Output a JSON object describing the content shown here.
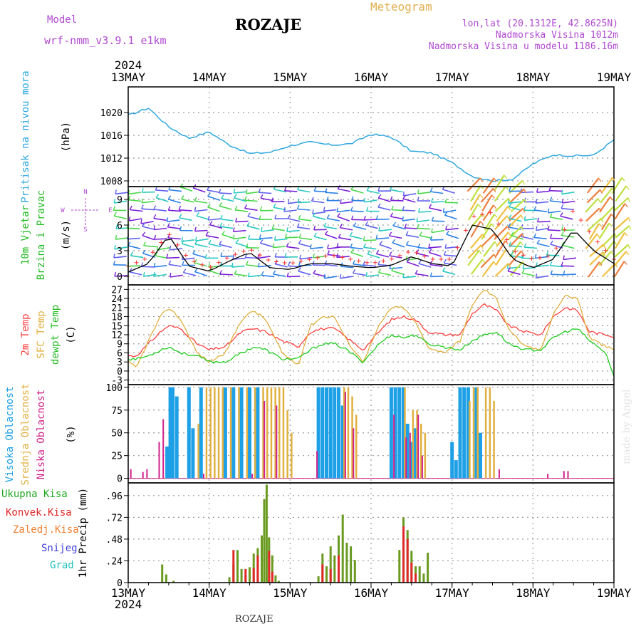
{
  "header": {
    "title": "ROZAJE",
    "meteogram_label": "Meteogram",
    "model_label": "Model",
    "model_name": "wrf-nmm_v3.9.1 e1km",
    "lonlat": "lon,lat (20.1312E, 42.8625N)",
    "elevation": "Nadmorska Visina 1012m",
    "model_elevation": "Nadmorska Visina u modelu 1186.16m"
  },
  "footer": {
    "station": "ROZAJE",
    "signature": "made by Angel"
  },
  "chart_data": [
    {
      "type": "line",
      "name": "pressure",
      "ylabel": "(hPa)",
      "side_label": "Pritisak na nivou mora",
      "ylim": [
        1007,
        1024.5
      ],
      "yticks": [
        1008,
        1012,
        1016,
        1020
      ],
      "x": [
        "2024-05-13 00",
        "2024-05-13 06",
        "2024-05-13 12",
        "2024-05-13 18",
        "2024-05-14 00",
        "2024-05-14 06",
        "2024-05-14 12",
        "2024-05-14 18",
        "2024-05-15 00",
        "2024-05-15 06",
        "2024-05-15 12",
        "2024-05-15 18",
        "2024-05-16 00",
        "2024-05-16 06",
        "2024-05-16 12",
        "2024-05-16 18",
        "2024-05-17 00",
        "2024-05-17 06",
        "2024-05-17 12",
        "2024-05-17 18",
        "2024-05-18 00",
        "2024-05-18 06",
        "2024-05-18 12",
        "2024-05-18 18",
        "2024-05-19 00"
      ],
      "values": [
        1019.5,
        1020.8,
        1017.5,
        1015.5,
        1016.6,
        1014.3,
        1012.8,
        1013.0,
        1014.2,
        1014.8,
        1014.3,
        1014.5,
        1016.2,
        1015.7,
        1013.2,
        1012.9,
        1011.2,
        1008.8,
        1008.0,
        1008.3,
        1011.0,
        1012.6,
        1012.4,
        1012.5,
        1015.2
      ],
      "color": "#30a8e0",
      "grid": true
    },
    {
      "type": "line",
      "name": "wind",
      "ylabel": "(m/s)",
      "side_labels": [
        "10m Vjetar",
        "Brzina i Pravac"
      ],
      "compass": [
        "N",
        "E",
        "S",
        "W"
      ],
      "ylim": [
        -1,
        10.5
      ],
      "yticks": [
        0,
        3,
        6,
        9
      ],
      "x_days": [
        0,
        0.25,
        0.5,
        0.75,
        1,
        1.25,
        1.5,
        1.75,
        2,
        2.25,
        2.5,
        2.75,
        3,
        3.25,
        3.5,
        3.75,
        4,
        4.25,
        4.5,
        4.75,
        5,
        5.25,
        5.5,
        5.75,
        6
      ],
      "series": [
        {
          "values": [
            0.5,
            1.5,
            4.8,
            1.2,
            0.6,
            1.8,
            2.8,
            1.0,
            0.8,
            1.5,
            1.5,
            1.2,
            1.0,
            1.3,
            2.3,
            1.5,
            1.2,
            6.0,
            5.5,
            2.0,
            1.0,
            2.0,
            5.5,
            3.0,
            1.5
          ],
          "color": "#000000"
        },
        {
          "values": [
            1.2,
            2.2,
            5.0,
            2.0,
            1.0,
            2.3,
            3.2,
            1.8,
            1.5,
            2.0,
            2.5,
            2.0,
            1.5,
            2.0,
            3.0,
            2.0,
            2.0,
            7.0,
            7.5,
            3.0,
            2.0,
            2.5,
            7.8,
            4.5,
            2.0
          ],
          "color": "#ff3030"
        }
      ],
      "barbs": {
        "colors": [
          "#7a1fd6",
          "#6060f0",
          "#2b80e6",
          "#28c8c0",
          "#48d848",
          "#c0e040",
          "#f0c040",
          "#f08040"
        ]
      },
      "grid": true
    },
    {
      "type": "line",
      "name": "temperature",
      "ylabel": "(C)",
      "side_labels": [
        "2m Temp",
        "SFC Temp",
        "dewpt Temp"
      ],
      "ylim": [
        -4.5,
        28.5
      ],
      "yticks": [
        -3,
        0,
        3,
        6,
        9,
        12,
        15,
        18,
        21,
        24,
        27
      ],
      "x_days": [
        0,
        0.1,
        0.25,
        0.4,
        0.5,
        0.65,
        0.85,
        1.0,
        1.2,
        1.4,
        1.55,
        1.7,
        1.9,
        2.1,
        2.25,
        2.4,
        2.55,
        2.7,
        2.9,
        3.1,
        3.25,
        3.4,
        3.55,
        3.7,
        3.9,
        4.1,
        4.25,
        4.4,
        4.55,
        4.7,
        4.9,
        5.1,
        5.25,
        5.4,
        5.55,
        5.7,
        5.9,
        6.0
      ],
      "series": [
        {
          "name": "2m Temp",
          "values": [
            5,
            5,
            9,
            13,
            15,
            14,
            9,
            7,
            8,
            13,
            14,
            13,
            10,
            8,
            13,
            14,
            14,
            11,
            7,
            13,
            17,
            18,
            17,
            13,
            12,
            12,
            19,
            22,
            20,
            15,
            13,
            12,
            18,
            21,
            20,
            13,
            12,
            11.5
          ],
          "color": "#ff4040"
        },
        {
          "name": "SFC Temp",
          "values": [
            3,
            1,
            10,
            18,
            21,
            17,
            6,
            3,
            6,
            17,
            20,
            17,
            6,
            2,
            15,
            18,
            18,
            10,
            3,
            15,
            21,
            21,
            16,
            8,
            6,
            10,
            22,
            27,
            24,
            14,
            8,
            7,
            19,
            25,
            24,
            11,
            8,
            7
          ],
          "color": "#e0b040"
        },
        {
          "name": "dewpt Temp",
          "values": [
            4,
            4,
            5,
            7,
            8,
            6,
            5,
            3,
            3,
            6,
            8,
            7,
            4,
            4,
            7,
            9,
            9,
            7,
            3,
            9,
            12,
            11,
            12,
            9,
            8,
            7,
            10,
            12,
            13,
            9,
            7,
            7,
            11,
            13,
            14,
            10,
            6,
            -2
          ],
          "color": "#20cc20"
        }
      ],
      "grid": true
    },
    {
      "type": "bar",
      "name": "cloud",
      "ylabel": "(%)",
      "side_labels": [
        "Visoka Oblacnost",
        "Srednja Oblacnost",
        "Niska Oblacnost"
      ],
      "ylim": [
        -5,
        103
      ],
      "yticks": [
        0,
        25,
        50,
        75,
        100
      ],
      "series": [
        {
          "name": "Visoka Oblacnost",
          "color": "#1ea0e6",
          "x_days": [
            0.48,
            0.52,
            0.55,
            0.6,
            0.75,
            0.8,
            0.9,
            1.2,
            1.3,
            1.4,
            1.5,
            1.6,
            2.35,
            2.4,
            2.45,
            2.5,
            2.55,
            2.6,
            2.65,
            3.25,
            3.3,
            3.35,
            3.4,
            3.45,
            3.5,
            3.55,
            4.0,
            4.05,
            4.1,
            4.15,
            4.2,
            4.3,
            4.35
          ],
          "values": [
            35,
            100,
            100,
            90,
            100,
            55,
            100,
            100,
            100,
            100,
            100,
            100,
            100,
            100,
            100,
            100,
            100,
            100,
            80,
            100,
            100,
            100,
            100,
            60,
            40,
            55,
            40,
            20,
            100,
            100,
            100,
            100,
            50
          ]
        },
        {
          "name": "Srednja Oblacnost",
          "color": "#e0b040",
          "x_days": [
            0.85,
            0.95,
            1.0,
            1.05,
            1.1,
            1.15,
            1.25,
            1.35,
            1.45,
            1.55,
            1.65,
            1.7,
            1.75,
            1.8,
            1.85,
            1.9,
            1.95,
            2.0,
            2.65,
            2.7,
            2.75,
            2.8,
            3.4,
            3.5,
            3.55,
            3.6,
            3.65,
            4.2,
            4.25,
            4.3,
            4.4,
            4.45,
            4.5
          ],
          "values": [
            60,
            100,
            100,
            100,
            100,
            100,
            100,
            100,
            100,
            100,
            100,
            100,
            100,
            100,
            100,
            100,
            75,
            50,
            100,
            100,
            90,
            70,
            100,
            75,
            75,
            60,
            50,
            85,
            100,
            100,
            100,
            100,
            85
          ]
        },
        {
          "name": "Niska Oblacnost",
          "color": "#d0208a",
          "x_days": [
            0.05,
            0.2,
            0.25,
            0.4,
            0.45,
            0.95,
            1.55,
            1.7,
            1.85,
            2.35,
            2.7,
            2.8,
            3.3,
            3.45,
            3.5,
            3.6,
            3.65,
            4.6,
            5.2,
            5.4,
            5.45
          ],
          "values": [
            10,
            7,
            10,
            40,
            65,
            5,
            5,
            85,
            80,
            30,
            95,
            55,
            70,
            45,
            50,
            70,
            25,
            10,
            5,
            8,
            8
          ]
        }
      ],
      "grid": true
    },
    {
      "type": "bar",
      "name": "precip",
      "ylabel": "1hr Precip (mm)",
      "legend": [
        "Ukupna Kisa",
        "Konvek.Kisa",
        "Zaledj.Kisa",
        "Snijeg",
        "Grad"
      ],
      "legend_colors": [
        "#20a820",
        "#e02828",
        "#f08030",
        "#4040e0",
        "#20c0c0"
      ],
      "ylim": [
        0,
        1.1
      ],
      "yticks": [
        0,
        0.24,
        0.48,
        0.72,
        0.96
      ],
      "series": [
        {
          "name": "Ukupna Kisa",
          "color": "#6a9a20",
          "x_days": [
            0.42,
            0.47,
            0.56,
            1.25,
            1.3,
            1.35,
            1.4,
            1.45,
            1.5,
            1.55,
            1.6,
            1.65,
            1.68,
            1.71,
            1.74,
            1.78,
            1.82,
            1.86,
            2.35,
            2.4,
            2.45,
            2.5,
            2.55,
            2.6,
            2.65,
            2.7,
            2.75,
            2.8,
            3.35,
            3.4,
            3.45,
            3.5,
            3.55,
            3.6,
            3.65,
            3.7
          ],
          "values": [
            0.2,
            0.09,
            0.02,
            0.06,
            0.2,
            0.36,
            0.15,
            0.08,
            0.17,
            0.32,
            0.38,
            0.52,
            0.92,
            1.08,
            0.5,
            0.3,
            0.08,
            0.02,
            0.07,
            0.32,
            0.18,
            0.4,
            0.3,
            0.52,
            0.75,
            0.44,
            0.4,
            0.25,
            0.36,
            0.72,
            0.58,
            0.35,
            0.18,
            0.18,
            0.1,
            0.33
          ]
        },
        {
          "name": "Konvek.Kisa",
          "color": "#e02828",
          "x_days": [
            1.3,
            1.45,
            1.55,
            1.6,
            1.74,
            1.78,
            2.4,
            2.5,
            2.6,
            3.4,
            3.45,
            3.5,
            3.55
          ],
          "values": [
            0.36,
            0.15,
            0.16,
            0.3,
            0.35,
            0.12,
            0.2,
            0.15,
            0.3,
            0.62,
            0.48,
            0.22,
            0.1
          ]
        }
      ],
      "grid": true
    }
  ],
  "axes": {
    "year": "2024",
    "day_labels": [
      "13MAY",
      "14MAY",
      "15MAY",
      "16MAY",
      "17MAY",
      "18MAY",
      "19MAY"
    ]
  }
}
